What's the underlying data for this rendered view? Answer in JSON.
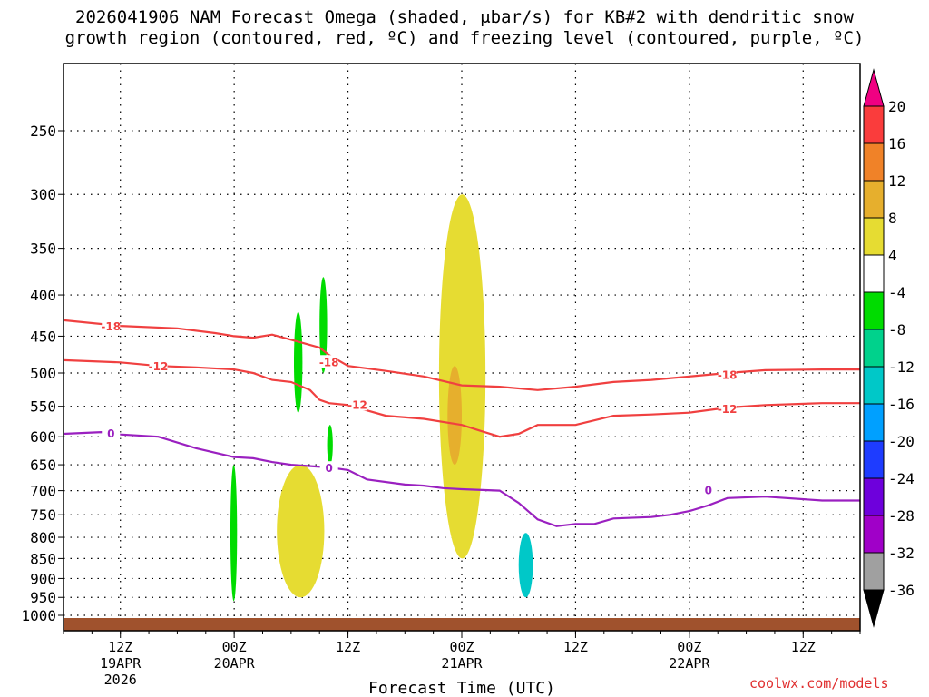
{
  "title": {
    "line1": "2026041906 NAM Forecast Omega (shaded, μbar/s) for KB#2 with dendritic snow",
    "line2": "growth region (contoured, red, ºC) and freezing level (contoured, purple, ºC)"
  },
  "credit": "coolwx.com/models",
  "chart_data": {
    "type": "time-height cross-section",
    "title": "2026041906 NAM Forecast Omega (shaded, μbar/s) for KB#2 with dendritic snow growth region (contoured, red, ºC) and freezing level (contoured, purple, ºC)",
    "xlabel": "Forecast Time (UTC)",
    "ylabel": "",
    "x_range_hours": [
      0,
      84
    ],
    "y_scale": "log-pressure",
    "y_range_hpa": [
      1050,
      200
    ],
    "pressure_levels": [
      250,
      300,
      350,
      400,
      450,
      500,
      550,
      600,
      650,
      700,
      750,
      800,
      850,
      900,
      950,
      1000
    ],
    "time_ticks": [
      {
        "hour": 6,
        "label": "12Z",
        "sub1": "19APR",
        "sub2": "2026"
      },
      {
        "hour": 18,
        "label": "00Z",
        "sub1": "20APR",
        "sub2": ""
      },
      {
        "hour": 30,
        "label": "12Z",
        "sub1": "",
        "sub2": ""
      },
      {
        "hour": 42,
        "label": "00Z",
        "sub1": "21APR",
        "sub2": ""
      },
      {
        "hour": 54,
        "label": "12Z",
        "sub1": "",
        "sub2": ""
      },
      {
        "hour": 66,
        "label": "00Z",
        "sub1": "22APR",
        "sub2": ""
      },
      {
        "hour": 78,
        "label": "12Z",
        "sub1": "",
        "sub2": ""
      }
    ],
    "colorbar": {
      "levels": [
        -36,
        -32,
        -28,
        -24,
        -20,
        -16,
        -12,
        -8,
        -4,
        4,
        8,
        12,
        16,
        20
      ],
      "colors": [
        "#000000",
        "#a0a0a0",
        "#a000c8",
        "#6e00dc",
        "#1e3cff",
        "#00a0ff",
        "#00c8c8",
        "#00d28c",
        "#00dc00",
        "#ffffff",
        "#e6dc32",
        "#e6af2d",
        "#f08228",
        "#fa3c3c",
        "#f00082"
      ]
    },
    "contours": [
      {
        "name": "minus18",
        "value": -18,
        "color": "#f04040",
        "points": [
          [
            0,
            430
          ],
          [
            6,
            437
          ],
          [
            12,
            440
          ],
          [
            16,
            446
          ],
          [
            18,
            450
          ],
          [
            20,
            452
          ],
          [
            22,
            448
          ],
          [
            25,
            458
          ],
          [
            27,
            465
          ],
          [
            28,
            475
          ],
          [
            30,
            490
          ],
          [
            34,
            497
          ],
          [
            38,
            505
          ],
          [
            42,
            518
          ],
          [
            46,
            520
          ],
          [
            50,
            525
          ],
          [
            54,
            520
          ],
          [
            58,
            513
          ],
          [
            62,
            510
          ],
          [
            66,
            505
          ],
          [
            70,
            500
          ],
          [
            74,
            496
          ],
          [
            80,
            495
          ],
          [
            84,
            495
          ]
        ],
        "labels": [
          [
            5,
            438
          ],
          [
            28,
            485
          ],
          [
            70,
            503
          ]
        ]
      },
      {
        "name": "minus12",
        "value": -12,
        "color": "#f04040",
        "points": [
          [
            0,
            482
          ],
          [
            6,
            485
          ],
          [
            10,
            490
          ],
          [
            14,
            492
          ],
          [
            18,
            495
          ],
          [
            20,
            500
          ],
          [
            22,
            510
          ],
          [
            24,
            513
          ],
          [
            26,
            525
          ],
          [
            27,
            540
          ],
          [
            28,
            545
          ],
          [
            30,
            548
          ],
          [
            34,
            565
          ],
          [
            38,
            570
          ],
          [
            42,
            580
          ],
          [
            44,
            590
          ],
          [
            46,
            600
          ],
          [
            48,
            595
          ],
          [
            50,
            580
          ],
          [
            54,
            580
          ],
          [
            58,
            565
          ],
          [
            62,
            563
          ],
          [
            66,
            560
          ],
          [
            70,
            552
          ],
          [
            74,
            548
          ],
          [
            80,
            545
          ],
          [
            84,
            545
          ]
        ],
        "labels": [
          [
            10,
            491
          ],
          [
            31,
            548
          ],
          [
            70,
            555
          ]
        ]
      },
      {
        "name": "freezing",
        "value": 0,
        "color": "#9a20c0",
        "points": [
          [
            0,
            595
          ],
          [
            4,
            592
          ],
          [
            6,
            596
          ],
          [
            10,
            600
          ],
          [
            14,
            620
          ],
          [
            18,
            636
          ],
          [
            20,
            638
          ],
          [
            22,
            645
          ],
          [
            24,
            650
          ],
          [
            28,
            655
          ],
          [
            30,
            660
          ],
          [
            32,
            678
          ],
          [
            36,
            688
          ],
          [
            38,
            690
          ],
          [
            40,
            695
          ],
          [
            42,
            697
          ],
          [
            46,
            700
          ],
          [
            48,
            725
          ],
          [
            50,
            760
          ],
          [
            52,
            775
          ],
          [
            54,
            770
          ],
          [
            56,
            770
          ],
          [
            58,
            758
          ],
          [
            62,
            755
          ],
          [
            64,
            750
          ],
          [
            66,
            742
          ],
          [
            68,
            730
          ],
          [
            70,
            715
          ],
          [
            74,
            712
          ],
          [
            80,
            720
          ],
          [
            84,
            720
          ]
        ],
        "labels": [
          [
            5,
            595
          ],
          [
            28,
            657
          ],
          [
            68,
            700
          ]
        ]
      }
    ],
    "shaded_regions": [
      {
        "name": "yellow-upward-main",
        "fill": "#e6dc32",
        "omega": "4 to 8",
        "extent_hours": [
          39.6,
          44.5
        ],
        "extent_hpa": [
          300,
          850
        ]
      },
      {
        "name": "orange-core",
        "fill": "#e6af2d",
        "omega": "8 to 12",
        "extent_hours": [
          40.5,
          42.0
        ],
        "extent_hpa": [
          490,
          650
        ]
      },
      {
        "name": "yellow-low-spots",
        "fill": "#e6dc32",
        "omega": "4 to 8",
        "extent_hours": [
          22.5,
          27.5
        ],
        "extent_hpa": [
          650,
          950
        ]
      },
      {
        "name": "green-downward-a",
        "fill": "#00dc00",
        "omega": "-4 to -8",
        "extent_hours": [
          17.6,
          18.3
        ],
        "extent_hpa": [
          650,
          960
        ]
      },
      {
        "name": "green-downward-b",
        "fill": "#00dc00",
        "omega": "-4 to -8",
        "extent_hours": [
          24.3,
          25.2
        ],
        "extent_hpa": [
          420,
          560
        ]
      },
      {
        "name": "green-downward-c",
        "fill": "#00dc00",
        "omega": "-4 to -8",
        "extent_hours": [
          27.0,
          27.8
        ],
        "extent_hpa": [
          380,
          500
        ]
      },
      {
        "name": "green-downward-d",
        "fill": "#00dc00",
        "omega": "-4 to -8",
        "extent_hours": [
          27.8,
          28.4
        ],
        "extent_hpa": [
          580,
          650
        ]
      },
      {
        "name": "teal-downward-core",
        "fill": "#00c8c8",
        "omega": "-8 to -16",
        "extent_hours": [
          48.0,
          49.5
        ],
        "extent_hpa": [
          790,
          950
        ]
      }
    ]
  }
}
